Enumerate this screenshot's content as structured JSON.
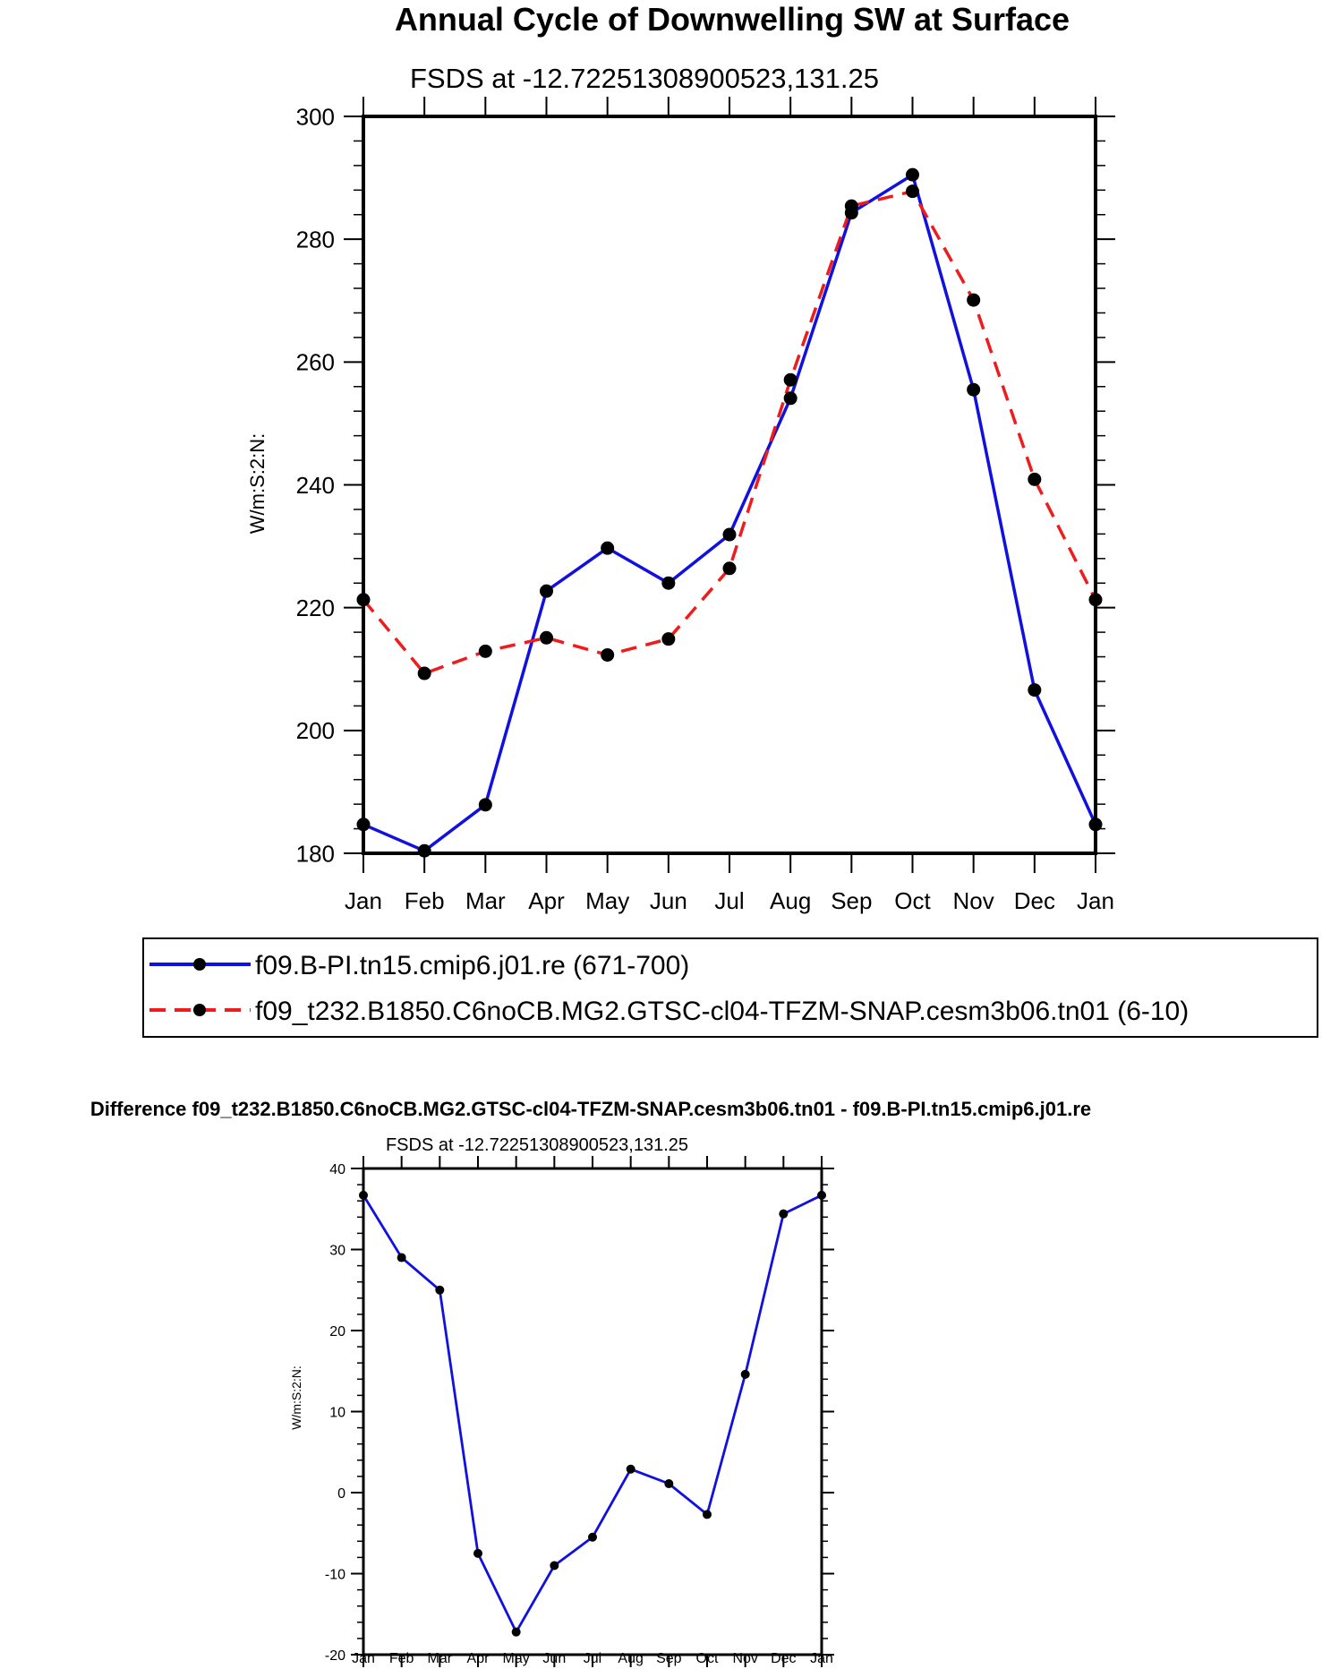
{
  "chart_data": [
    {
      "type": "line",
      "title": "Annual Cycle of Downwelling SW at Surface",
      "subtitle": "FSDS at -12.72251308900523,131.25",
      "ylabel": "W/m:S:2:N:",
      "xlabel": "",
      "categories": [
        "Jan",
        "Feb",
        "Mar",
        "Apr",
        "May",
        "Jun",
        "Jul",
        "Aug",
        "Sep",
        "Oct",
        "Nov",
        "Dec",
        "Jan"
      ],
      "ylim": [
        180,
        300
      ],
      "yticks": [
        180,
        200,
        220,
        240,
        260,
        280,
        300
      ],
      "series": [
        {
          "name": "f09.B-PI.tn15.cmip6.j01.re (671-700)",
          "color": "#1010e0",
          "dash": "solid",
          "values": [
            184.7,
            180.4,
            187.9,
            222.7,
            229.7,
            224.0,
            231.9,
            254.1,
            284.3,
            290.5,
            255.5,
            206.6,
            184.7
          ]
        },
        {
          "name": "f09_t232.B1850.C6noCB.MG2.GTSC-cl04-TFZM-SNAP.cesm3b06.tn01 (6-10)",
          "color": "#ee1c1c",
          "dash": "dashed",
          "values": [
            221.3,
            209.3,
            212.9,
            215.1,
            212.3,
            214.9,
            226.4,
            257.1,
            285.4,
            287.8,
            270.1,
            240.9,
            221.3
          ]
        }
      ],
      "legend": "bottom"
    },
    {
      "type": "line",
      "title": "Difference f09_t232.B1850.C6noCB.MG2.GTSC-cl04-TFZM-SNAP.cesm3b06.tn01 - f09.B-PI.tn15.cmip6.j01.re",
      "subtitle": "FSDS at -12.72251308900523,131.25",
      "ylabel": "W/m:S:2:N:",
      "xlabel": "",
      "categories": [
        "Jan",
        "Feb",
        "Mar",
        "Apr",
        "May",
        "Jun",
        "Jul",
        "Aug",
        "Sep",
        "Oct",
        "Nov",
        "Dec",
        "Jan"
      ],
      "ylim": [
        -20,
        40
      ],
      "yticks": [
        -20,
        -10,
        0,
        10,
        20,
        30,
        40
      ],
      "series": [
        {
          "name": "Difference",
          "color": "#1010e0",
          "dash": "solid",
          "values": [
            36.7,
            29.0,
            25.0,
            -7.5,
            -17.2,
            -9.0,
            -5.5,
            2.9,
            1.1,
            -2.7,
            14.6,
            34.4,
            36.7
          ]
        }
      ]
    }
  ]
}
